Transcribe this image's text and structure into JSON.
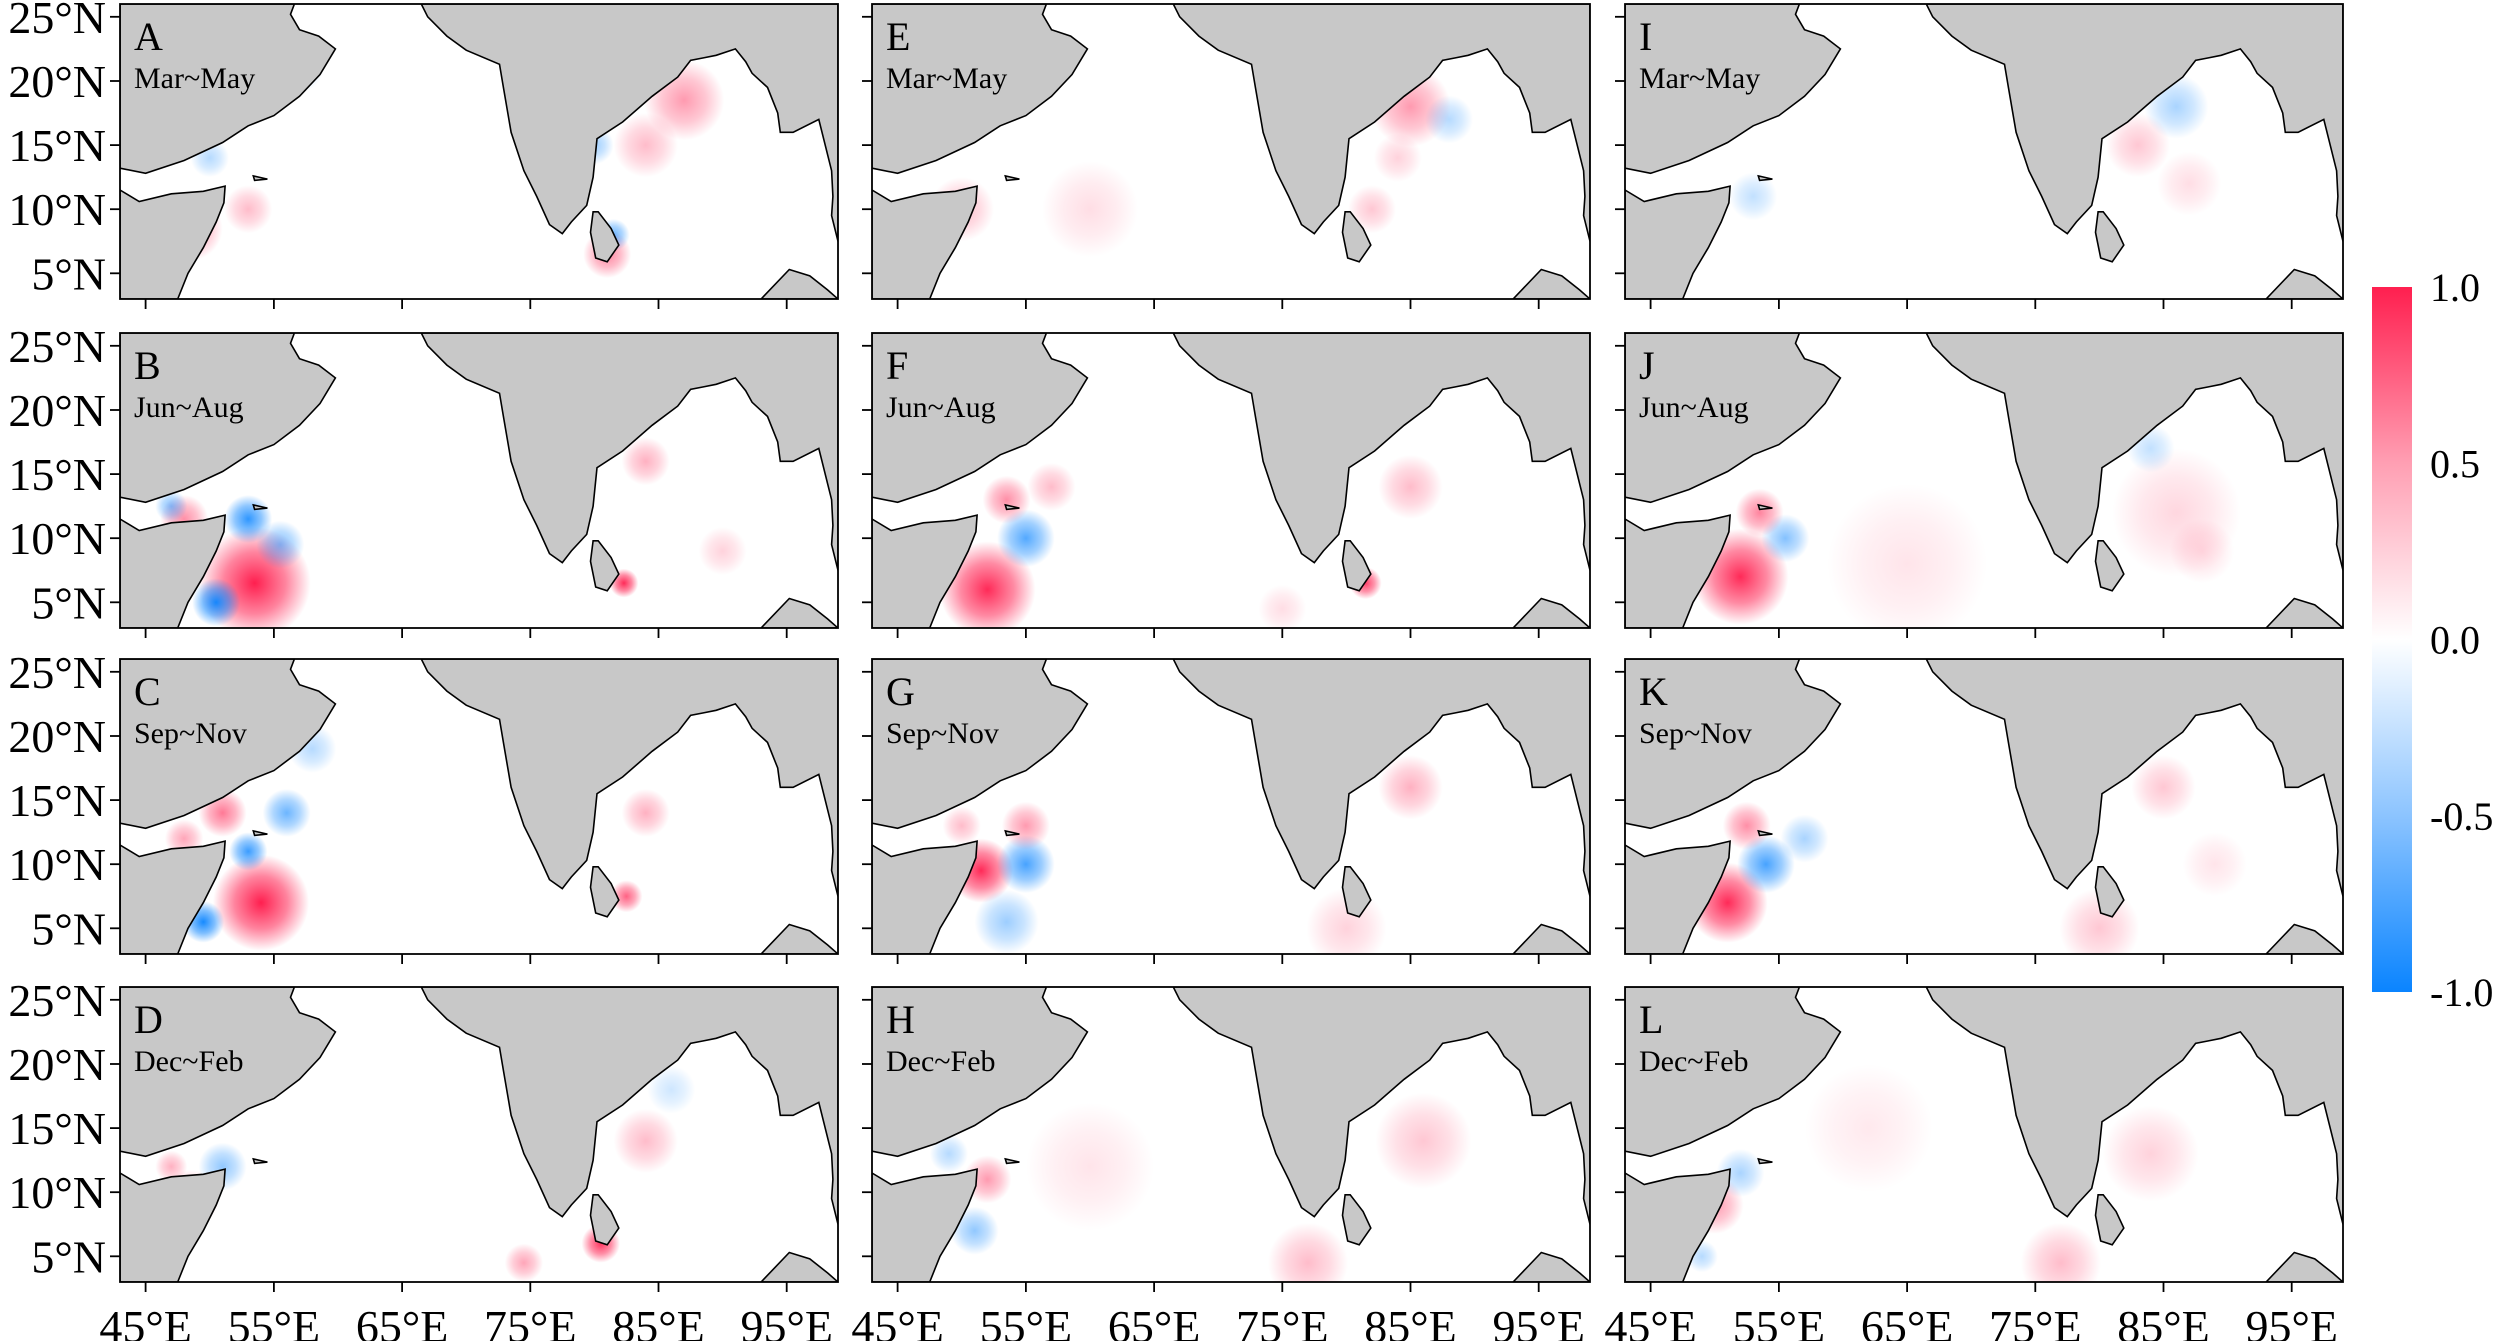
{
  "chart_data": {
    "type": "heatmap",
    "layout": "4 rows x 3 columns of regional maps",
    "title": "",
    "xlabel": "",
    "ylabel": "",
    "x_ticks": [
      "45°E",
      "55°E",
      "65°E",
      "75°E",
      "85°E",
      "95°E"
    ],
    "y_ticks": [
      "25°N",
      "20°N",
      "15°N",
      "10°N",
      "5°N"
    ],
    "xlim": [
      43,
      99
    ],
    "ylim": [
      3,
      26
    ],
    "land_color": "#c8c8c8",
    "colorbar": {
      "ticks": [
        "1.0",
        "0.5",
        "0.0",
        "-0.5",
        "-1.0"
      ],
      "range": [
        -1.0,
        1.0
      ],
      "color_max": "#ff1f4f",
      "color_zero": "#ffffff",
      "color_min": "#0a84ff"
    },
    "panels": [
      {
        "letter": "A",
        "season": "Mar~May",
        "intensity": 0.5,
        "blobs": [
          [
            48.5,
            8.5,
            2,
            0.5
          ],
          [
            53,
            10,
            1.5,
            0.3
          ],
          [
            87,
            18.5,
            2.5,
            0.45
          ],
          [
            84,
            15,
            2,
            0.3
          ],
          [
            81,
            6.5,
            1.5,
            0.55
          ],
          [
            81.5,
            8,
            1,
            -0.6
          ],
          [
            80,
            15,
            1.2,
            -0.4
          ],
          [
            50,
            14,
            1.2,
            -0.3
          ],
          [
            57,
            21,
            1.5,
            -0.25
          ]
        ]
      },
      {
        "letter": "B",
        "season": "Jun~Aug",
        "intensity": 1.0,
        "blobs": [
          [
            53.5,
            6.5,
            3.5,
            1.0
          ],
          [
            50.5,
            5,
            1.5,
            -0.95
          ],
          [
            53,
            11.5,
            1.5,
            -0.85
          ],
          [
            55.5,
            9.5,
            1.5,
            -0.5
          ],
          [
            82.3,
            6.5,
            0.9,
            0.95
          ],
          [
            48,
            11.5,
            1.5,
            0.5
          ],
          [
            84,
            16,
            1.5,
            0.35
          ],
          [
            90,
            9,
            1.5,
            0.2
          ],
          [
            47,
            12.5,
            1,
            -0.5
          ]
        ]
      },
      {
        "letter": "C",
        "season": "Sep~Nov",
        "intensity": 1.0,
        "blobs": [
          [
            54,
            7,
            3,
            1.0
          ],
          [
            49.5,
            5.5,
            1.3,
            -0.95
          ],
          [
            53,
            11,
            1.2,
            -0.8
          ],
          [
            56,
            14,
            1.5,
            -0.6
          ],
          [
            51,
            14,
            1.5,
            0.6
          ],
          [
            82.5,
            7.5,
            1,
            0.7
          ],
          [
            84,
            14,
            1.5,
            0.35
          ],
          [
            58,
            19,
            1.5,
            -0.3
          ],
          [
            48,
            12,
            1.2,
            0.4
          ]
        ]
      },
      {
        "letter": "D",
        "season": "Dec~Feb",
        "intensity": 0.55,
        "blobs": [
          [
            80.5,
            6,
            1.2,
            0.9
          ],
          [
            48.5,
            9.5,
            1.8,
            0.4
          ],
          [
            51,
            12,
            1.5,
            -0.45
          ],
          [
            84,
            14,
            2,
            0.3
          ],
          [
            74.5,
            4.5,
            1.2,
            0.4
          ],
          [
            47,
            12,
            1,
            0.35
          ],
          [
            86,
            18,
            1.5,
            -0.2
          ]
        ]
      },
      {
        "letter": "E",
        "season": "Mar~May",
        "intensity": 0.35,
        "blobs": [
          [
            85,
            18,
            2.5,
            0.45
          ],
          [
            88,
            17,
            1.5,
            -0.3
          ],
          [
            50,
            10,
            2,
            0.3
          ],
          [
            82,
            10,
            1.5,
            0.25
          ],
          [
            60,
            10,
            3,
            0.15
          ],
          [
            84,
            14,
            1.5,
            0.2
          ]
        ]
      },
      {
        "letter": "F",
        "season": "Jun~Aug",
        "intensity": 0.85,
        "blobs": [
          [
            52,
            6,
            3,
            0.95
          ],
          [
            55,
            10,
            1.8,
            -0.7
          ],
          [
            53.5,
            13,
            1.5,
            0.5
          ],
          [
            81.5,
            6.5,
            1,
            0.85
          ],
          [
            85,
            14,
            2,
            0.3
          ],
          [
            57,
            14,
            1.5,
            0.3
          ],
          [
            75,
            4.5,
            1.5,
            0.15
          ]
        ]
      },
      {
        "letter": "G",
        "season": "Sep~Nov",
        "intensity": 0.85,
        "blobs": [
          [
            51.5,
            9.5,
            2,
            0.95
          ],
          [
            55,
            10,
            1.8,
            -0.75
          ],
          [
            53.5,
            5.5,
            2,
            -0.4
          ],
          [
            55,
            13,
            1.5,
            0.45
          ],
          [
            85,
            16,
            2,
            0.35
          ],
          [
            80,
            5,
            2.5,
            0.2
          ],
          [
            50,
            13,
            1.2,
            0.3
          ]
        ]
      },
      {
        "letter": "H",
        "season": "Dec~Feb",
        "intensity": 0.4,
        "blobs": [
          [
            51,
            7,
            1.5,
            -0.45
          ],
          [
            52,
            11,
            1.5,
            0.45
          ],
          [
            77,
            4.5,
            2.5,
            0.3
          ],
          [
            86,
            14,
            3,
            0.25
          ],
          [
            60,
            12,
            4,
            0.12
          ],
          [
            49,
            13,
            1.2,
            -0.3
          ]
        ]
      },
      {
        "letter": "I",
        "season": "Mar~May",
        "intensity": 0.3,
        "blobs": [
          [
            86,
            18,
            2,
            -0.35
          ],
          [
            83,
            15,
            2,
            0.25
          ],
          [
            48,
            9,
            2,
            0.3
          ],
          [
            53,
            11,
            1.5,
            -0.25
          ],
          [
            87,
            12,
            2,
            0.15
          ]
        ]
      },
      {
        "letter": "J",
        "season": "Jun~Aug",
        "intensity": 0.85,
        "blobs": [
          [
            52,
            7,
            3,
            0.95
          ],
          [
            55.5,
            10,
            1.5,
            -0.5
          ],
          [
            53.5,
            12,
            1.5,
            0.55
          ],
          [
            86,
            12,
            4,
            0.18
          ],
          [
            65,
            8,
            5,
            0.12
          ],
          [
            84,
            17,
            1.5,
            -0.25
          ],
          [
            88,
            9,
            2,
            0.15
          ]
        ]
      },
      {
        "letter": "K",
        "season": "Sep~Nov",
        "intensity": 0.85,
        "blobs": [
          [
            51,
            7,
            2.5,
            0.95
          ],
          [
            54,
            10,
            1.8,
            -0.75
          ],
          [
            52.5,
            13,
            1.5,
            0.5
          ],
          [
            57,
            12,
            1.5,
            -0.35
          ],
          [
            85,
            16,
            2,
            0.25
          ],
          [
            80,
            5,
            2.5,
            0.25
          ],
          [
            89,
            10,
            2,
            0.12
          ]
        ]
      },
      {
        "letter": "L",
        "season": "Dec~Feb",
        "intensity": 0.4,
        "blobs": [
          [
            50,
            9,
            1.8,
            0.45
          ],
          [
            52,
            11.5,
            1.5,
            -0.35
          ],
          [
            77,
            4.5,
            2.5,
            0.3
          ],
          [
            84,
            13,
            3,
            0.2
          ],
          [
            62,
            15,
            4,
            0.1
          ],
          [
            49,
            5,
            1,
            -0.3
          ]
        ]
      }
    ]
  }
}
